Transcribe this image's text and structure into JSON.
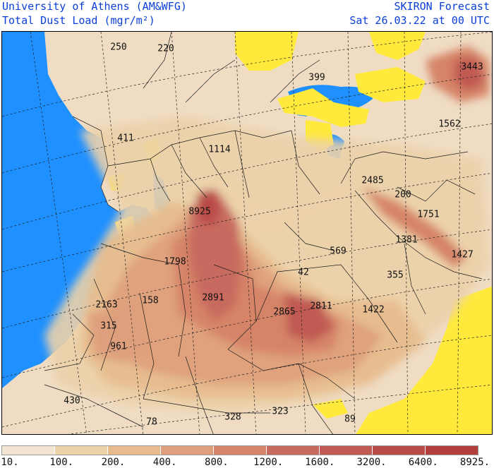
{
  "header": {
    "line1": "University of Athens (AM&WFG)",
    "line2": "Total Dust Load (mgr/m²)",
    "forecast": "SKIRON Forecast",
    "time": "Sat 26.03.22 at 00 UTC"
  },
  "colors": {
    "sea": "#1e90ff",
    "low_dust_yellow": "#ffea3c",
    "levels": [
      "#f2e6d3",
      "#ecd2a8",
      "#e7bb8d",
      "#dea07c",
      "#d68468",
      "#c86b5e",
      "#c05a52",
      "#b94b46",
      "#b23f3c"
    ]
  },
  "legend": {
    "ticks": [
      "10.",
      "100.",
      "200.",
      "400.",
      "800.",
      "1200.",
      "1600.",
      "3200.",
      "6400.",
      "8925."
    ]
  },
  "map_values": [
    "250",
    "220",
    "399",
    "3443",
    "1562",
    "411",
    "1114",
    "2485",
    "200",
    "8925",
    "1751",
    "1381",
    "569",
    "1427",
    "1798",
    "42",
    "355",
    "2163",
    "158",
    "2891",
    "2865",
    "2811",
    "1422",
    "315",
    "961",
    "430",
    "78",
    "328",
    "323",
    "89"
  ]
}
